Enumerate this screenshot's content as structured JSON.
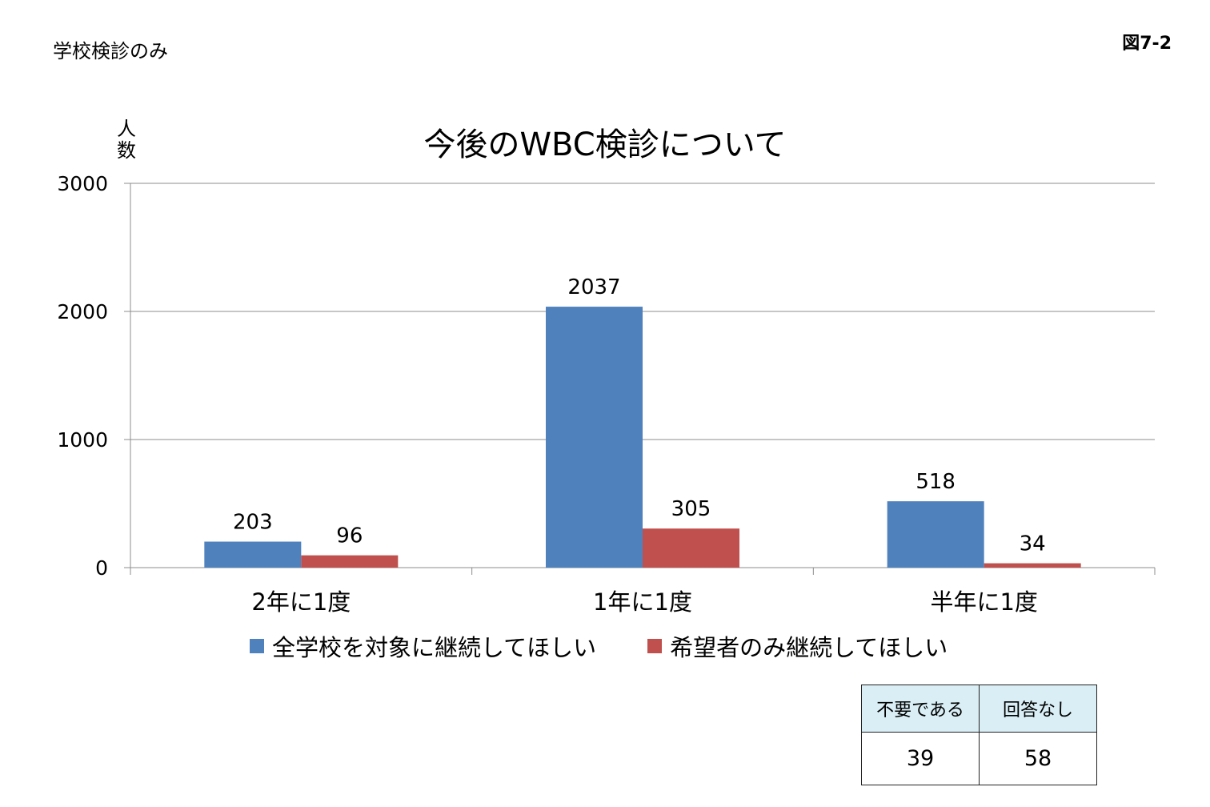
{
  "page": {
    "note": "学校検診のみ",
    "figure_label": "図7-2"
  },
  "chart_data": {
    "type": "bar",
    "title": "今後のWBC検診について",
    "ylabel": "人数",
    "xlabel": "",
    "ylim": [
      0,
      3000
    ],
    "yticks": [
      0,
      1000,
      2000,
      3000
    ],
    "grid": true,
    "legend_position": "bottom",
    "categories": [
      "2年に1度",
      "1年に1度",
      "半年に1度"
    ],
    "series": [
      {
        "name": "全学校を対象に継続してほしい",
        "color": "#4f81bd",
        "values": [
          203,
          2037,
          518
        ]
      },
      {
        "name": "希望者のみ継続してほしい",
        "color": "#c0504d",
        "values": [
          96,
          305,
          34
        ]
      }
    ]
  },
  "extra_table": {
    "headers": [
      "不要である",
      "回答なし"
    ],
    "values": [
      "39",
      "58"
    ],
    "header_bg": "#d9eef5"
  }
}
